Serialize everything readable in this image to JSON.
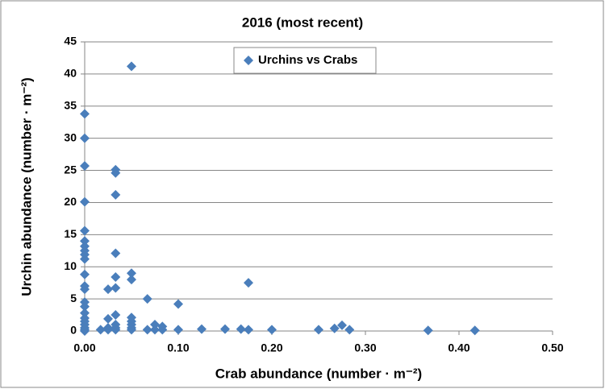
{
  "chart_data": {
    "type": "scatter",
    "title": "2016 (most recent)",
    "x_label": "Crab abundance (number · m⁻²)",
    "y_label": "Urchin abundance (number · m⁻²)",
    "xlim": [
      0,
      0.5
    ],
    "xticks": [
      {
        "value": 0,
        "label": "0.00"
      },
      {
        "value": 0.1,
        "label": "0.10"
      },
      {
        "value": 0.2,
        "label": "0.20"
      },
      {
        "value": 0.3,
        "label": "0.30"
      },
      {
        "value": 0.4,
        "label": "0.40"
      },
      {
        "value": 0.5,
        "label": "0.50"
      }
    ],
    "ylim": [
      0,
      45
    ],
    "yticks": [
      0,
      5,
      10,
      15,
      20,
      25,
      30,
      35,
      40,
      45
    ],
    "grid": true,
    "legend_position": "top",
    "series": [
      {
        "name": "Urchins vs Crabs",
        "color": "#4a7ebb",
        "x": [
          0,
          0,
          0,
          0,
          0,
          0,
          0,
          0,
          0,
          0,
          0,
          0,
          0,
          0,
          0,
          0,
          0,
          0,
          0,
          0,
          0,
          0,
          0.033,
          0.033,
          0.033,
          0.033,
          0.033,
          0.033,
          0.033,
          0.033,
          0.033,
          0.033,
          0.05,
          0.05,
          0.05,
          0.05,
          0.05,
          0.05,
          0.05,
          0.05,
          0.025,
          0.025,
          0.025,
          0.025,
          0.017,
          0.067,
          0.067,
          0.075,
          0.075,
          0.083,
          0.083,
          0.1,
          0.1,
          0.125,
          0.15,
          0.167,
          0.175,
          0.175,
          0.2,
          0.25,
          0.267,
          0.275,
          0.283,
          0.367,
          0.417
        ],
        "values": [
          33.8,
          30,
          25.7,
          20.1,
          15.6,
          14,
          13.2,
          12.5,
          11.9,
          11.2,
          8.8,
          7,
          6.5,
          4.5,
          3.8,
          2.8,
          2,
          1.5,
          1,
          0.5,
          0.2,
          0,
          25.1,
          24.6,
          21.2,
          12.1,
          8.4,
          6.7,
          2.5,
          1,
          0.5,
          0.2,
          41.2,
          9,
          8,
          2.1,
          1.5,
          1,
          0.5,
          0.2,
          6.5,
          1.9,
          0.5,
          0.2,
          0.2,
          5,
          0.2,
          1,
          0.2,
          0.7,
          0.2,
          4.2,
          0.2,
          0.3,
          0.3,
          0.3,
          7.5,
          0.2,
          0.2,
          0.2,
          0.4,
          0.9,
          0.2,
          0.1,
          0.1
        ]
      }
    ]
  }
}
